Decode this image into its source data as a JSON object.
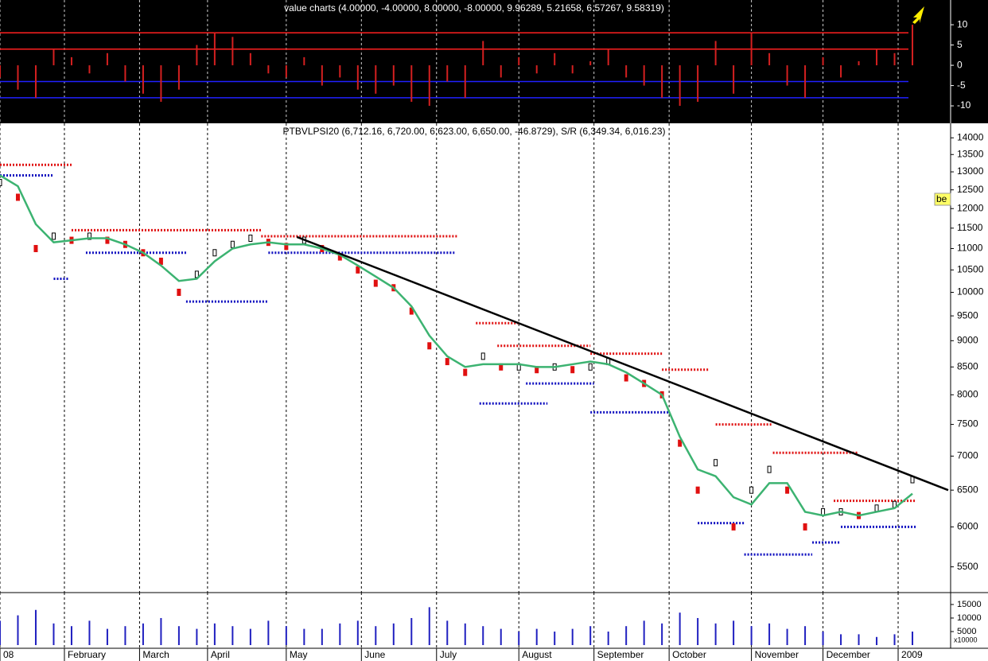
{
  "chart_data": [
    {
      "type": "bar",
      "title": "value charts (4.00000, -4.00000, 8.00000, -8.00000, 9.96289, 5.21658, 6.57267, 9.58319)",
      "x": [
        0,
        5,
        10,
        15,
        20,
        25,
        30,
        35,
        40,
        45,
        50,
        55,
        60,
        65,
        70,
        75,
        80,
        85,
        90,
        95,
        100,
        105,
        110,
        115,
        120,
        125,
        130,
        135,
        140,
        145,
        150,
        155,
        160,
        165,
        170,
        175,
        180,
        185,
        190,
        195,
        200,
        205,
        210,
        215,
        220,
        225,
        230,
        235,
        240,
        245,
        250,
        255
      ],
      "values": [
        -3,
        -6,
        -8,
        4,
        2,
        -2,
        3,
        -4,
        -7,
        -9,
        -6,
        5,
        8,
        7,
        3,
        -2,
        -3,
        2,
        -5,
        -3,
        -6,
        -7,
        -5,
        -9,
        -10,
        -4,
        -8,
        6,
        -3,
        2,
        -2,
        3,
        -2,
        1,
        4,
        -3,
        -5,
        -8,
        -10,
        -9,
        6,
        -7,
        8,
        3,
        -5,
        -8,
        2,
        -3,
        1,
        4,
        3,
        10
      ],
      "color": "#d42020",
      "levels": [
        {
          "value": 8,
          "color": "#ff2020"
        },
        {
          "value": 4,
          "color": "#ff2020"
        },
        {
          "value": -4,
          "color": "#2020ff"
        },
        {
          "value": -8,
          "color": "#2020ff"
        }
      ],
      "xlim": [
        0,
        265
      ],
      "ylim": [
        -14.3,
        16.1
      ],
      "yticks": [
        10,
        5,
        0,
        -5,
        -10
      ]
    },
    {
      "type": "line",
      "title": "PTBVLPSI20 (6,712.16, 6,720.00, 6,623.00, 6,650.00, -46.8729), S/R (6,349.34, 6,016.23)",
      "x": [
        0,
        5,
        10,
        15,
        20,
        25,
        30,
        35,
        40,
        45,
        50,
        55,
        60,
        65,
        70,
        75,
        80,
        85,
        90,
        95,
        100,
        105,
        110,
        115,
        120,
        125,
        130,
        135,
        140,
        145,
        150,
        155,
        160,
        165,
        170,
        175,
        180,
        185,
        190,
        195,
        200,
        205,
        210,
        215,
        220,
        225,
        230,
        235,
        240,
        245,
        250,
        255
      ],
      "series": [
        {
          "style": "candle",
          "color": "#e01010",
          "values": [
            12700,
            12300,
            11000,
            11300,
            11200,
            11300,
            11200,
            11100,
            10900,
            10700,
            10000,
            10400,
            10900,
            11100,
            11250,
            11150,
            11050,
            11200,
            11000,
            10800,
            10500,
            10200,
            10100,
            9600,
            8900,
            8600,
            8400,
            8700,
            8500,
            8500,
            8450,
            8500,
            8450,
            8500,
            8600,
            8300,
            8200,
            8000,
            7200,
            6500,
            6900,
            6000,
            6500,
            6800,
            6500,
            6000,
            6200,
            6200,
            6150,
            6250,
            6300,
            6650
          ]
        },
        {
          "style": "line",
          "color": "#3cb371",
          "values": [
            12900,
            12600,
            11600,
            11150,
            11200,
            11250,
            11250,
            11100,
            10900,
            10600,
            10250,
            10300,
            10700,
            11000,
            11100,
            11150,
            11100,
            11100,
            11000,
            10850,
            10600,
            10350,
            10100,
            9700,
            9100,
            8700,
            8500,
            8550,
            8550,
            8550,
            8500,
            8500,
            8550,
            8600,
            8550,
            8400,
            8200,
            8000,
            7300,
            6800,
            6700,
            6400,
            6300,
            6600,
            6600,
            6200,
            6150,
            6200,
            6150,
            6200,
            6250,
            6450
          ]
        }
      ],
      "trend_line": {
        "x": [
          83,
          265
        ],
        "values": [
          11280,
          6500
        ],
        "color": "#000000"
      },
      "resistance": {
        "color": "#e01010",
        "segments": [
          {
            "x": [
              0,
              20
            ],
            "value": 13200
          },
          {
            "x": [
              20,
              73
            ],
            "value": 11450
          },
          {
            "x": [
              73,
              128
            ],
            "value": 11300
          },
          {
            "x": [
              133,
              145
            ],
            "value": 9350
          },
          {
            "x": [
              139,
              165
            ],
            "value": 8900
          },
          {
            "x": [
              165,
              185
            ],
            "value": 8750
          },
          {
            "x": [
              185,
              198
            ],
            "value": 8450
          },
          {
            "x": [
              200,
              216
            ],
            "value": 7500
          },
          {
            "x": [
              216,
              240
            ],
            "value": 7050
          },
          {
            "x": [
              233,
              256
            ],
            "value": 6350
          }
        ]
      },
      "support": {
        "color": "#1010c0",
        "segments": [
          {
            "x": [
              0,
              15
            ],
            "value": 12900
          },
          {
            "x": [
              15,
              19
            ],
            "value": 10300
          },
          {
            "x": [
              24,
              52
            ],
            "value": 10900
          },
          {
            "x": [
              52,
              75
            ],
            "value": 9800
          },
          {
            "x": [
              75,
              127
            ],
            "value": 10900
          },
          {
            "x": [
              134,
              153
            ],
            "value": 7850
          },
          {
            "x": [
              147,
              166
            ],
            "value": 8200
          },
          {
            "x": [
              165,
              187
            ],
            "value": 7700
          },
          {
            "x": [
              195,
              208
            ],
            "value": 6050
          },
          {
            "x": [
              208,
              227
            ],
            "value": 5650
          },
          {
            "x": [
              227,
              235
            ],
            "value": 5800
          },
          {
            "x": [
              235,
              256
            ],
            "value": 6000
          }
        ]
      },
      "marker_label": "be",
      "log_scale": true,
      "xlim": [
        0,
        265
      ],
      "ylim": [
        5200,
        14450
      ],
      "yticks": [
        14000,
        13500,
        13000,
        12500,
        12000,
        11500,
        11000,
        10500,
        10000,
        9500,
        9000,
        8500,
        8000,
        7500,
        7000,
        6500,
        6000,
        5500
      ]
    },
    {
      "type": "bar",
      "x": [
        0,
        5,
        10,
        15,
        20,
        25,
        30,
        35,
        40,
        45,
        50,
        55,
        60,
        65,
        70,
        75,
        80,
        85,
        90,
        95,
        100,
        105,
        110,
        115,
        120,
        125,
        130,
        135,
        140,
        145,
        150,
        155,
        160,
        165,
        170,
        175,
        180,
        185,
        190,
        195,
        200,
        205,
        210,
        215,
        220,
        225,
        230,
        235,
        240,
        245,
        250,
        255
      ],
      "values": [
        9000,
        11000,
        13000,
        8000,
        7000,
        9000,
        6000,
        7000,
        8000,
        10000,
        7000,
        6000,
        8000,
        7000,
        6000,
        9000,
        7000,
        6000,
        6000,
        8000,
        9000,
        7000,
        8000,
        10000,
        14000,
        9000,
        8000,
        7000,
        6000,
        5000,
        6000,
        5000,
        6000,
        7000,
        5000,
        7000,
        9000,
        8000,
        12000,
        10000,
        8000,
        9000,
        7000,
        8000,
        6000,
        7000,
        5000,
        4000,
        4000,
        3000,
        4000,
        5000
      ],
      "color": "#2020c0",
      "unit_label": "x10000",
      "xlim": [
        0,
        265
      ],
      "ylim": [
        0,
        19400
      ],
      "yticks": [
        15000,
        10000,
        5000
      ],
      "xticks": [
        {
          "value": 0,
          "label": "08"
        },
        {
          "value": 18,
          "label": "February"
        },
        {
          "value": 39,
          "label": "March"
        },
        {
          "value": 58,
          "label": "April"
        },
        {
          "value": 80,
          "label": "May"
        },
        {
          "value": 101,
          "label": "June"
        },
        {
          "value": 122,
          "label": "July"
        },
        {
          "value": 145,
          "label": "August"
        },
        {
          "value": 166,
          "label": "September"
        },
        {
          "value": 187,
          "label": "October"
        },
        {
          "value": 210,
          "label": "November"
        },
        {
          "value": 230,
          "label": "December"
        },
        {
          "value": 251,
          "label": "2009"
        }
      ]
    }
  ]
}
